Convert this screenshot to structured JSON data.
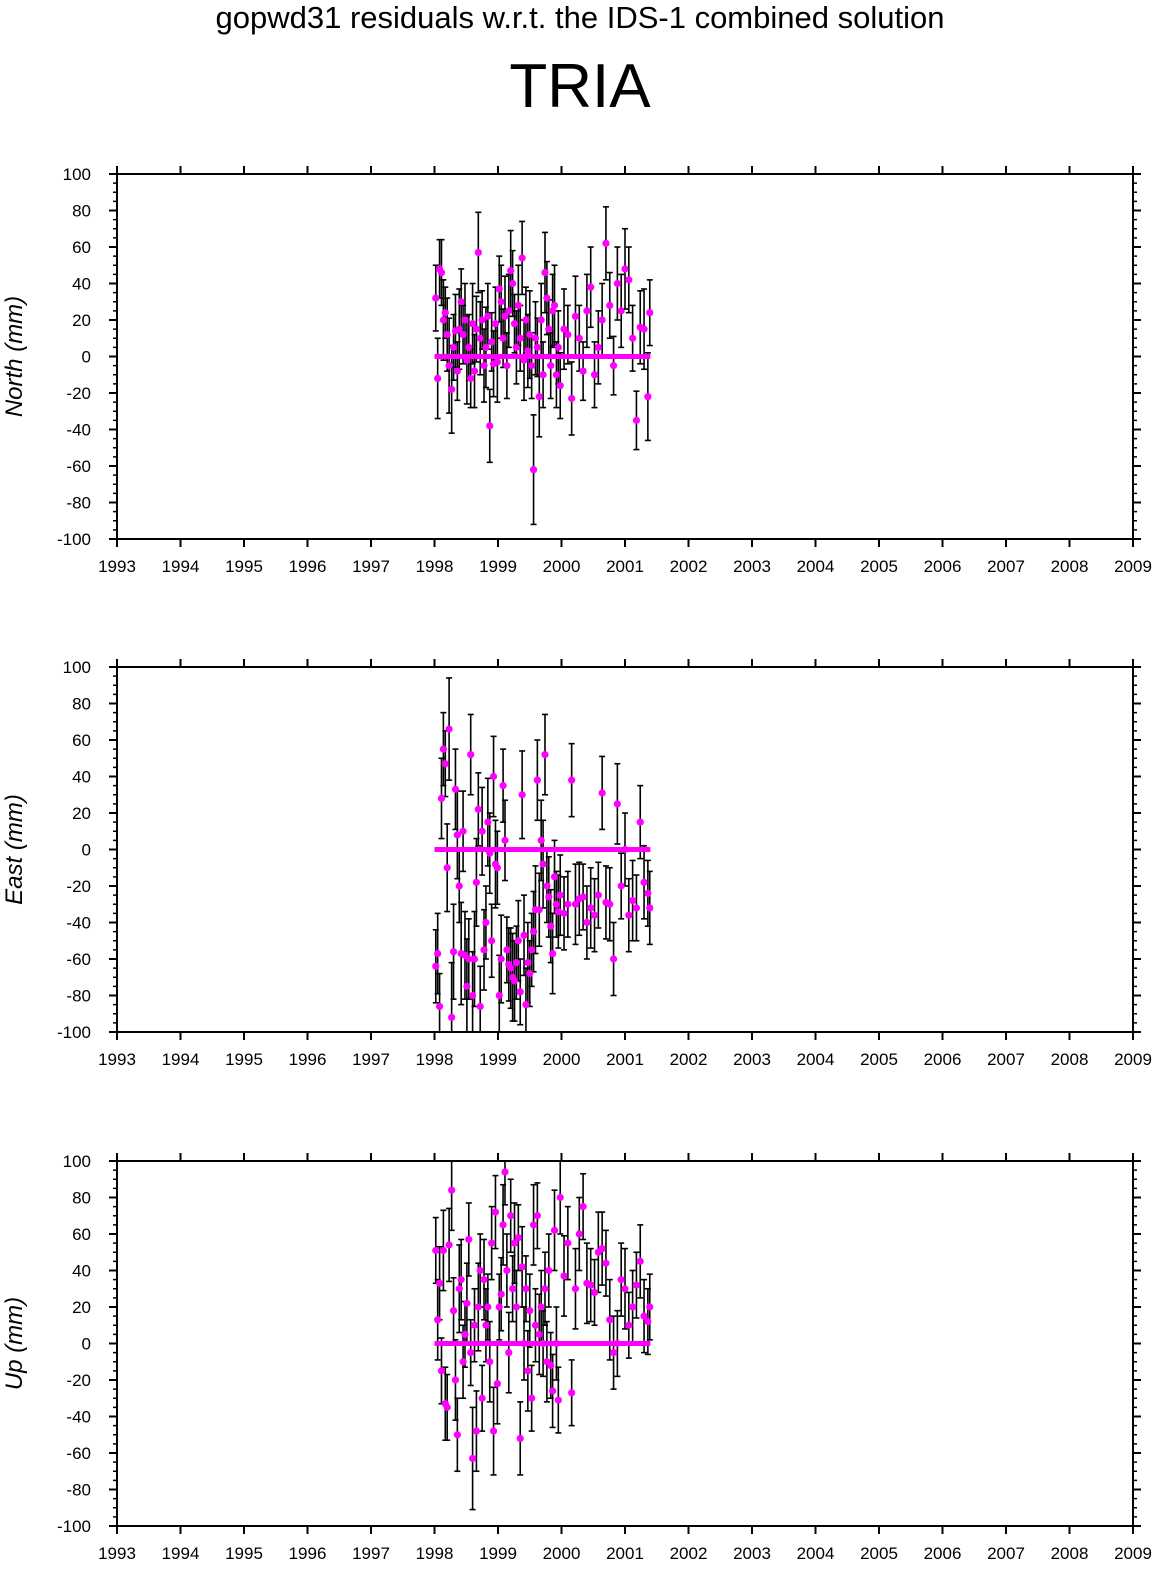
{
  "figure": {
    "title": "gopwd31 residuals w.r.t. the IDS-1 combined solution",
    "station": "TRIA"
  },
  "colors": {
    "points": "#ff00ff",
    "errorbars": "#000000",
    "axes": "#000000"
  },
  "chart_data": [
    {
      "type": "scatter",
      "title": "",
      "xlabel": "",
      "ylabel": "North (mm)",
      "xlim": [
        1993,
        2009
      ],
      "ylim": [
        -100,
        100
      ],
      "xticks": [
        1993,
        1994,
        1995,
        1996,
        1997,
        1998,
        1999,
        2000,
        2001,
        2002,
        2003,
        2004,
        2005,
        2006,
        2007,
        2008,
        2009
      ],
      "yticks": [
        -100,
        -80,
        -60,
        -40,
        -20,
        0,
        20,
        40,
        60,
        80,
        100
      ],
      "zero_line": {
        "x": [
          1998.0,
          2001.4
        ],
        "y": 0
      },
      "series": [
        {
          "x": [
            1998.02,
            1998.05,
            1998.08,
            1998.11,
            1998.14,
            1998.17,
            1998.2,
            1998.23,
            1998.27,
            1998.3,
            1998.33,
            1998.36,
            1998.39,
            1998.42,
            1998.45,
            1998.48,
            1998.51,
            1998.54,
            1998.57,
            1998.6,
            1998.63,
            1998.66,
            1998.69,
            1998.72,
            1998.75,
            1998.78,
            1998.81,
            1998.84,
            1998.87,
            1998.9,
            1998.93,
            1998.96,
            1998.99,
            1999.02,
            1999.05,
            1999.08,
            1999.11,
            1999.14,
            1999.17,
            1999.2,
            1999.23,
            1999.26,
            1999.29,
            1999.32,
            1999.35,
            1999.38,
            1999.41,
            1999.44,
            1999.47,
            1999.5,
            1999.53,
            1999.56,
            1999.59,
            1999.62,
            1999.65,
            1999.68,
            1999.71,
            1999.74,
            1999.77,
            1999.8,
            1999.83,
            1999.86,
            1999.89,
            1999.92,
            1999.95,
            1999.98,
            2000.04,
            2000.1,
            2000.16,
            2000.22,
            2000.28,
            2000.34,
            2000.4,
            2000.46,
            2000.52,
            2000.58,
            2000.64,
            2000.7,
            2000.76,
            2000.82,
            2000.88,
            2000.94,
            2001.0,
            2001.06,
            2001.12,
            2001.18,
            2001.24,
            2001.3,
            2001.36,
            2001.39
          ],
          "y": [
            32,
            -12,
            48,
            46,
            20,
            24,
            12,
            -5,
            -18,
            5,
            14,
            -8,
            15,
            30,
            12,
            20,
            -2,
            5,
            -12,
            18,
            -8,
            15,
            57,
            10,
            20,
            -5,
            5,
            22,
            -38,
            8,
            -4,
            18,
            -3,
            37,
            30,
            10,
            22,
            -5,
            25,
            47,
            40,
            18,
            5,
            28,
            10,
            54,
            -2,
            20,
            3,
            12,
            -5,
            -62,
            10,
            5,
            -22,
            20,
            -10,
            46,
            32,
            15,
            -5,
            25,
            28,
            -10,
            5,
            -16,
            15,
            12,
            -23,
            22,
            10,
            -8,
            25,
            38,
            -10,
            5,
            20,
            62,
            28,
            -5,
            40,
            25,
            48,
            42,
            10,
            -35,
            16,
            15,
            -22,
            24
          ],
          "err": [
            18,
            22,
            16,
            18,
            22,
            14,
            20,
            26,
            24,
            18,
            20,
            16,
            22,
            18,
            16,
            20,
            24,
            18,
            16,
            22,
            20,
            18,
            22,
            20,
            16,
            20,
            22,
            18,
            20,
            16,
            18,
            20,
            22,
            18,
            20,
            16,
            22,
            18,
            20,
            22,
            18,
            16,
            20,
            22,
            18,
            20,
            22,
            18,
            20,
            24,
            18,
            30,
            20,
            16,
            22,
            20,
            18,
            22,
            20,
            16,
            18,
            20,
            22,
            18,
            20,
            18,
            22,
            16,
            20,
            22,
            18,
            16,
            20,
            22,
            18,
            20,
            20,
            20,
            18,
            16,
            20,
            20,
            22,
            18,
            18,
            16,
            20,
            22,
            24,
            18
          ]
        }
      ]
    },
    {
      "type": "scatter",
      "title": "",
      "xlabel": "",
      "ylabel": "East (mm)",
      "xlim": [
        1993,
        2009
      ],
      "ylim": [
        -100,
        100
      ],
      "xticks": [
        1993,
        1994,
        1995,
        1996,
        1997,
        1998,
        1999,
        2000,
        2001,
        2002,
        2003,
        2004,
        2005,
        2006,
        2007,
        2008,
        2009
      ],
      "yticks": [
        -100,
        -80,
        -60,
        -40,
        -20,
        0,
        20,
        40,
        60,
        80,
        100
      ],
      "zero_line": {
        "x": [
          1998.0,
          2001.4
        ],
        "y": 0
      },
      "series": [
        {
          "x": [
            1998.02,
            1998.05,
            1998.08,
            1998.11,
            1998.14,
            1998.17,
            1998.2,
            1998.23,
            1998.27,
            1998.3,
            1998.33,
            1998.36,
            1998.39,
            1998.42,
            1998.45,
            1998.48,
            1998.51,
            1998.54,
            1998.57,
            1998.6,
            1998.63,
            1998.66,
            1998.69,
            1998.72,
            1998.75,
            1998.78,
            1998.81,
            1998.84,
            1998.87,
            1998.9,
            1998.93,
            1998.96,
            1998.99,
            1999.02,
            1999.05,
            1999.08,
            1999.11,
            1999.14,
            1999.17,
            1999.2,
            1999.23,
            1999.26,
            1999.29,
            1999.32,
            1999.35,
            1999.38,
            1999.41,
            1999.44,
            1999.47,
            1999.5,
            1999.53,
            1999.56,
            1999.59,
            1999.62,
            1999.65,
            1999.68,
            1999.71,
            1999.74,
            1999.77,
            1999.8,
            1999.83,
            1999.86,
            1999.89,
            1999.92,
            1999.95,
            1999.98,
            2000.04,
            2000.1,
            2000.16,
            2000.22,
            2000.28,
            2000.34,
            2000.4,
            2000.46,
            2000.52,
            2000.58,
            2000.64,
            2000.7,
            2000.76,
            2000.82,
            2000.88,
            2000.94,
            2001.0,
            2001.06,
            2001.12,
            2001.18,
            2001.24,
            2001.3,
            2001.36,
            2001.39
          ],
          "y": [
            -64,
            -57,
            -86,
            28,
            55,
            47,
            -10,
            66,
            -92,
            -56,
            33,
            8,
            -20,
            -57,
            10,
            -58,
            -75,
            -60,
            52,
            -80,
            -60,
            -18,
            22,
            -86,
            10,
            -55,
            -40,
            15,
            -2,
            -50,
            40,
            -8,
            -10,
            -80,
            -60,
            35,
            5,
            -55,
            -63,
            -65,
            -70,
            -72,
            -62,
            -50,
            -78,
            30,
            -47,
            -85,
            -62,
            -68,
            -55,
            -45,
            -33,
            38,
            -33,
            5,
            -8,
            52,
            -20,
            -26,
            -42,
            -57,
            -15,
            -30,
            -34,
            -25,
            -35,
            -30,
            38,
            -30,
            -27,
            -26,
            -40,
            -32,
            -36,
            -25,
            31,
            -29,
            -30,
            -60,
            25,
            -20,
            0,
            -36,
            -28,
            -32,
            15,
            -18,
            -24,
            -32
          ],
          "err": [
            20,
            22,
            18,
            22,
            20,
            18,
            24,
            28,
            30,
            26,
            22,
            24,
            20,
            28,
            22,
            24,
            26,
            22,
            22,
            24,
            26,
            24,
            20,
            22,
            24,
            22,
            20,
            24,
            22,
            20,
            22,
            24,
            20,
            22,
            24,
            20,
            22,
            18,
            20,
            22,
            24,
            22,
            20,
            22,
            18,
            24,
            22,
            20,
            22,
            18,
            20,
            22,
            24,
            22,
            20,
            22,
            24,
            22,
            20,
            22,
            20,
            22,
            20,
            18,
            20,
            22,
            20,
            18,
            20,
            22,
            20,
            18,
            20,
            22,
            20,
            18,
            20,
            20,
            20,
            20,
            22,
            18,
            20,
            20,
            22,
            18,
            20,
            20,
            18,
            20
          ]
        }
      ]
    },
    {
      "type": "scatter",
      "title": "",
      "xlabel": "",
      "ylabel": "Up (mm)",
      "xlim": [
        1993,
        2009
      ],
      "ylim": [
        -100,
        100
      ],
      "xticks": [
        1993,
        1994,
        1995,
        1996,
        1997,
        1998,
        1999,
        2000,
        2001,
        2002,
        2003,
        2004,
        2005,
        2006,
        2007,
        2008,
        2009
      ],
      "yticks": [
        -100,
        -80,
        -60,
        -40,
        -20,
        0,
        20,
        40,
        60,
        80,
        100
      ],
      "zero_line": {
        "x": [
          1998.0,
          2001.4
        ],
        "y": 0
      },
      "series": [
        {
          "x": [
            1998.02,
            1998.05,
            1998.08,
            1998.11,
            1998.14,
            1998.17,
            1998.2,
            1998.23,
            1998.27,
            1998.3,
            1998.33,
            1998.36,
            1998.39,
            1998.42,
            1998.45,
            1998.48,
            1998.51,
            1998.54,
            1998.57,
            1998.6,
            1998.63,
            1998.66,
            1998.69,
            1998.72,
            1998.75,
            1998.78,
            1998.81,
            1998.84,
            1998.87,
            1998.9,
            1998.93,
            1998.96,
            1998.99,
            1999.02,
            1999.05,
            1999.08,
            1999.11,
            1999.14,
            1999.17,
            1999.2,
            1999.23,
            1999.26,
            1999.29,
            1999.32,
            1999.35,
            1999.38,
            1999.41,
            1999.44,
            1999.47,
            1999.5,
            1999.53,
            1999.56,
            1999.59,
            1999.62,
            1999.65,
            1999.68,
            1999.71,
            1999.74,
            1999.77,
            1999.8,
            1999.83,
            1999.86,
            1999.89,
            1999.92,
            1999.95,
            1999.98,
            2000.04,
            2000.1,
            2000.16,
            2000.22,
            2000.28,
            2000.34,
            2000.4,
            2000.46,
            2000.52,
            2000.58,
            2000.64,
            2000.7,
            2000.76,
            2000.82,
            2000.88,
            2000.94,
            2001.0,
            2001.06,
            2001.12,
            2001.18,
            2001.24,
            2001.3,
            2001.36,
            2001.39
          ],
          "y": [
            51,
            13,
            33,
            -15,
            51,
            -33,
            -35,
            54,
            84,
            18,
            -20,
            -50,
            30,
            35,
            -10,
            5,
            22,
            57,
            -5,
            -63,
            10,
            -48,
            20,
            40,
            -30,
            35,
            10,
            20,
            -10,
            55,
            -48,
            72,
            -22,
            20,
            27,
            65,
            94,
            40,
            -5,
            70,
            30,
            55,
            20,
            58,
            -52,
            42,
            0,
            30,
            -15,
            18,
            -30,
            65,
            10,
            70,
            5,
            20,
            0,
            30,
            -10,
            40,
            -12,
            -26,
            62,
            0,
            -31,
            80,
            37,
            55,
            -27,
            30,
            60,
            75,
            33,
            32,
            28,
            50,
            52,
            44,
            13,
            -5,
            0,
            35,
            30,
            10,
            20,
            32,
            45,
            15,
            12,
            20
          ],
          "err": [
            18,
            22,
            20,
            18,
            22,
            20,
            18,
            20,
            22,
            18,
            22,
            20,
            24,
            22,
            20,
            18,
            22,
            20,
            18,
            28,
            20,
            22,
            24,
            20,
            18,
            22,
            20,
            18,
            22,
            20,
            24,
            20,
            22,
            18,
            20,
            22,
            18,
            20,
            22,
            20,
            18,
            22,
            20,
            18,
            20,
            22,
            20,
            18,
            22,
            20,
            18,
            22,
            20,
            18,
            22,
            20,
            18,
            20,
            22,
            20,
            18,
            20,
            22,
            20,
            18,
            20,
            22,
            20,
            18,
            22,
            20,
            18,
            22,
            20,
            18,
            22,
            20,
            18,
            22,
            20,
            18,
            20,
            22,
            18,
            20,
            18,
            20,
            20,
            18,
            18
          ]
        }
      ]
    }
  ]
}
